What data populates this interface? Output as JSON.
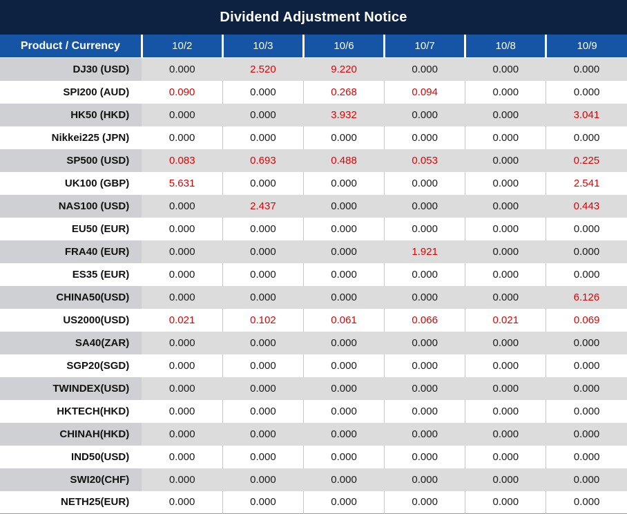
{
  "title": "Dividend Adjustment Notice",
  "colors": {
    "title_bg": "#0d2240",
    "header_bg": "#1654a5",
    "header_text": "#ffffff",
    "gray_row_bg": "#dcdcdc",
    "gray_label_bg": "#ced0d4",
    "value_text": "#1a1a1a",
    "highlight_red": "#e10000"
  },
  "table": {
    "label_header": "Product / Currency",
    "date_headers": [
      "10/2",
      "10/3",
      "10/6",
      "10/7",
      "10/8",
      "10/9"
    ],
    "rows": [
      {
        "product": "DJ30 (USD)",
        "values": [
          "0.000",
          "2.520",
          "9.220",
          "0.000",
          "0.000",
          "0.000"
        ],
        "red": [
          0,
          1,
          1,
          0,
          0,
          0
        ]
      },
      {
        "product": "SPI200 (AUD)",
        "values": [
          "0.090",
          "0.000",
          "0.268",
          "0.094",
          "0.000",
          "0.000"
        ],
        "red": [
          1,
          0,
          1,
          1,
          0,
          0
        ]
      },
      {
        "product": "HK50 (HKD)",
        "values": [
          "0.000",
          "0.000",
          "3.932",
          "0.000",
          "0.000",
          "3.041"
        ],
        "red": [
          0,
          0,
          1,
          0,
          0,
          1
        ]
      },
      {
        "product": "Nikkei225 (JPN)",
        "values": [
          "0.000",
          "0.000",
          "0.000",
          "0.000",
          "0.000",
          "0.000"
        ],
        "red": [
          0,
          0,
          0,
          0,
          0,
          0
        ]
      },
      {
        "product": "SP500 (USD)",
        "values": [
          "0.083",
          "0.693",
          "0.488",
          "0.053",
          "0.000",
          "0.225"
        ],
        "red": [
          1,
          1,
          1,
          1,
          0,
          1
        ]
      },
      {
        "product": "UK100 (GBP)",
        "values": [
          "5.631",
          "0.000",
          "0.000",
          "0.000",
          "0.000",
          "2.541"
        ],
        "red": [
          1,
          0,
          0,
          0,
          0,
          1
        ]
      },
      {
        "product": "NAS100 (USD)",
        "values": [
          "0.000",
          "2.437",
          "0.000",
          "0.000",
          "0.000",
          "0.443"
        ],
        "red": [
          0,
          1,
          0,
          0,
          0,
          1
        ]
      },
      {
        "product": "EU50 (EUR)",
        "values": [
          "0.000",
          "0.000",
          "0.000",
          "0.000",
          "0.000",
          "0.000"
        ],
        "red": [
          0,
          0,
          0,
          0,
          0,
          0
        ]
      },
      {
        "product": "FRA40 (EUR)",
        "values": [
          "0.000",
          "0.000",
          "0.000",
          "1.921",
          "0.000",
          "0.000"
        ],
        "red": [
          0,
          0,
          0,
          1,
          0,
          0
        ]
      },
      {
        "product": "ES35 (EUR)",
        "values": [
          "0.000",
          "0.000",
          "0.000",
          "0.000",
          "0.000",
          "0.000"
        ],
        "red": [
          0,
          0,
          0,
          0,
          0,
          0
        ]
      },
      {
        "product": "CHINA50(USD)",
        "values": [
          "0.000",
          "0.000",
          "0.000",
          "0.000",
          "0.000",
          "6.126"
        ],
        "red": [
          0,
          0,
          0,
          0,
          0,
          1
        ]
      },
      {
        "product": "US2000(USD)",
        "values": [
          "0.021",
          "0.102",
          "0.061",
          "0.066",
          "0.021",
          "0.069"
        ],
        "red": [
          1,
          1,
          1,
          1,
          1,
          1
        ]
      },
      {
        "product": "SA40(ZAR)",
        "values": [
          "0.000",
          "0.000",
          "0.000",
          "0.000",
          "0.000",
          "0.000"
        ],
        "red": [
          0,
          0,
          0,
          0,
          0,
          0
        ]
      },
      {
        "product": "SGP20(SGD)",
        "values": [
          "0.000",
          "0.000",
          "0.000",
          "0.000",
          "0.000",
          "0.000"
        ],
        "red": [
          0,
          0,
          0,
          0,
          0,
          0
        ]
      },
      {
        "product": "TWINDEX(USD)",
        "values": [
          "0.000",
          "0.000",
          "0.000",
          "0.000",
          "0.000",
          "0.000"
        ],
        "red": [
          0,
          0,
          0,
          0,
          0,
          0
        ]
      },
      {
        "product": "HKTECH(HKD)",
        "values": [
          "0.000",
          "0.000",
          "0.000",
          "0.000",
          "0.000",
          "0.000"
        ],
        "red": [
          0,
          0,
          0,
          0,
          0,
          0
        ]
      },
      {
        "product": "CHINAH(HKD)",
        "values": [
          "0.000",
          "0.000",
          "0.000",
          "0.000",
          "0.000",
          "0.000"
        ],
        "red": [
          0,
          0,
          0,
          0,
          0,
          0
        ]
      },
      {
        "product": "IND50(USD)",
        "values": [
          "0.000",
          "0.000",
          "0.000",
          "0.000",
          "0.000",
          "0.000"
        ],
        "red": [
          0,
          0,
          0,
          0,
          0,
          0
        ]
      },
      {
        "product": "SWI20(CHF)",
        "values": [
          "0.000",
          "0.000",
          "0.000",
          "0.000",
          "0.000",
          "0.000"
        ],
        "red": [
          0,
          0,
          0,
          0,
          0,
          0
        ]
      },
      {
        "product": "NETH25(EUR)",
        "values": [
          "0.000",
          "0.000",
          "0.000",
          "0.000",
          "0.000",
          "0.000"
        ],
        "red": [
          0,
          0,
          0,
          0,
          0,
          0
        ]
      }
    ]
  }
}
